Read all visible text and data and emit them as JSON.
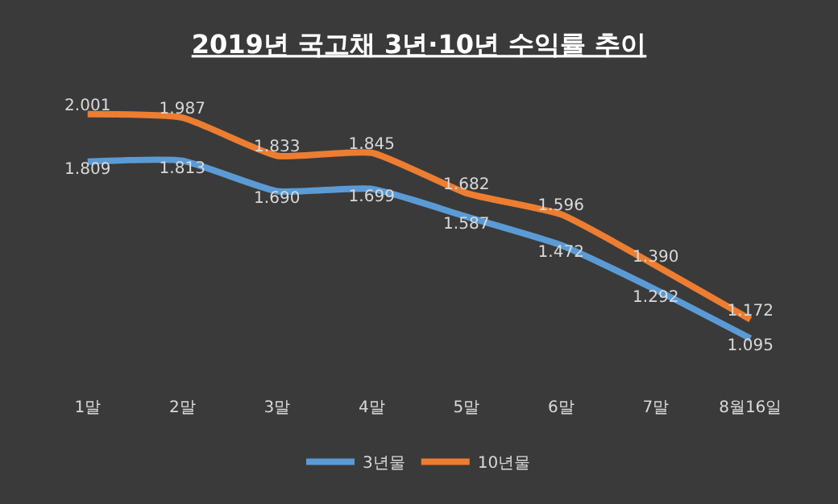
{
  "chart_data": {
    "type": "line",
    "title": "2019년 국고채 3년·10년 수익률 추이",
    "categories": [
      "1말",
      "2말",
      "3말",
      "4말",
      "5말",
      "6말",
      "7말",
      "8월16일"
    ],
    "series": [
      {
        "name": "3년물",
        "color": "#5b9bd5",
        "values": [
          1.809,
          1.813,
          1.69,
          1.699,
          1.587,
          1.472,
          1.292,
          1.095
        ],
        "value_labels": [
          "1.809",
          "1.813",
          "1.690",
          "1.699",
          "1.587",
          "1.472",
          "1.292",
          "1.095"
        ]
      },
      {
        "name": "10년물",
        "color": "#ed7d31",
        "values": [
          2.001,
          1.987,
          1.833,
          1.845,
          1.682,
          1.596,
          1.39,
          1.172
        ],
        "value_labels": [
          "2.001",
          "1.987",
          "1.833",
          "1.845",
          "1.682",
          "1.596",
          "1.390",
          "1.172"
        ]
      }
    ],
    "tick_labels": "x",
    "legend": "bottom",
    "grid": false,
    "marker": "none",
    "line_style": "solid"
  }
}
